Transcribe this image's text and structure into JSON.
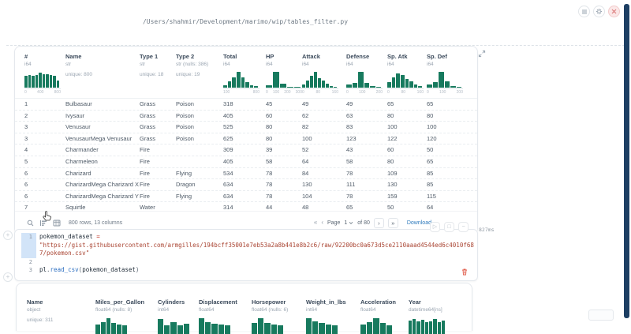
{
  "header": {
    "file_path": "/Users/shahmir/Development/marimo/wip/tables_filter.py"
  },
  "icons": {
    "page_first": "«",
    "page_prev": "‹",
    "page_next": "›",
    "page_last": "»",
    "run": "▷",
    "interrupt": "□",
    "collapse": "−",
    "add_cell": "+"
  },
  "colors": {
    "accent_green": "#177a5e",
    "link_blue": "#2f7bbd",
    "danger_red": "#e2604f",
    "scrollbar_navy": "#1d3f63"
  },
  "main_table": {
    "columns": [
      {
        "name": "#",
        "dtype": "i64",
        "hist": {
          "bins": [
            7.5,
            8,
            7.5,
            8,
            9.5,
            8.5,
            8.5,
            8,
            7.5,
            4.5
          ],
          "ticks": [
            "0",
            "400",
            "800"
          ]
        }
      },
      {
        "name": "Name",
        "dtype": "str",
        "meta": "unique: 800"
      },
      {
        "name": "Type 1",
        "dtype": "str",
        "meta": "unique: 18"
      },
      {
        "name": "Type 2",
        "dtype": "str (nulls: 386)",
        "meta": "unique: 19"
      },
      {
        "name": "Total",
        "dtype": "i64",
        "hist": {
          "bins": [
            1.5,
            4,
            6.5,
            10,
            6.5,
            3.5,
            1.5,
            0.8
          ],
          "ticks": [
            "100",
            "800"
          ]
        }
      },
      {
        "name": "HP",
        "dtype": "i64",
        "hist": {
          "bins": [
            1.5,
            10,
            2.5,
            0.7,
            0.3
          ],
          "ticks": [
            "0",
            "100",
            "200",
            "300"
          ]
        }
      },
      {
        "name": "Attack",
        "dtype": "i64",
        "hist": {
          "bins": [
            2,
            4.5,
            7.5,
            10,
            6,
            4.5,
            2.5,
            1.2,
            0.5
          ],
          "ticks": [
            "0",
            "80",
            "160"
          ]
        }
      },
      {
        "name": "Defense",
        "dtype": "i64",
        "hist": {
          "bins": [
            2,
            3,
            10,
            3,
            1,
            0.4
          ],
          "ticks": [
            "0",
            "100",
            "200"
          ]
        }
      },
      {
        "name": "Sp. Atk",
        "dtype": "i64",
        "hist": {
          "bins": [
            3.5,
            6.5,
            9,
            8,
            5.5,
            4,
            2,
            1
          ],
          "ticks": [
            "0",
            "80",
            "160"
          ]
        }
      },
      {
        "name": "Sp. Def",
        "dtype": "i64",
        "hist": {
          "bins": [
            2,
            3.5,
            10,
            4,
            1.2,
            0.5
          ],
          "ticks": [
            "0",
            "100",
            "200"
          ]
        }
      }
    ],
    "rows": [
      [
        "1",
        "Bulbasaur",
        "Grass",
        "Poison",
        "318",
        "45",
        "49",
        "49",
        "65",
        "65"
      ],
      [
        "2",
        "Ivysaur",
        "Grass",
        "Poison",
        "405",
        "60",
        "62",
        "63",
        "80",
        "80"
      ],
      [
        "3",
        "Venusaur",
        "Grass",
        "Poison",
        "525",
        "80",
        "82",
        "83",
        "100",
        "100"
      ],
      [
        "3",
        "VenusaurMega Venusaur",
        "Grass",
        "Poison",
        "625",
        "80",
        "100",
        "123",
        "122",
        "120"
      ],
      [
        "4",
        "Charmander",
        "Fire",
        "",
        "309",
        "39",
        "52",
        "43",
        "60",
        "50"
      ],
      [
        "5",
        "Charmeleon",
        "Fire",
        "",
        "405",
        "58",
        "64",
        "58",
        "80",
        "65"
      ],
      [
        "6",
        "Charizard",
        "Fire",
        "Flying",
        "534",
        "78",
        "84",
        "78",
        "109",
        "85"
      ],
      [
        "6",
        "CharizardMega Charizard X",
        "Fire",
        "Dragon",
        "634",
        "78",
        "130",
        "111",
        "130",
        "85"
      ],
      [
        "6",
        "CharizardMega Charizard Y",
        "Fire",
        "Flying",
        "634",
        "78",
        "104",
        "78",
        "159",
        "115"
      ],
      [
        "7",
        "Squirtle",
        "Water",
        "",
        "314",
        "44",
        "48",
        "65",
        "50",
        "64"
      ]
    ],
    "footer": {
      "summary": "800 rows, 13 columns",
      "page_label": "Page",
      "page_value": "1",
      "page_total": "of 80",
      "download_label": "Download"
    }
  },
  "editor": {
    "runtime": "827ms",
    "lines": [
      {
        "num": "1",
        "hl": true,
        "tokens": [
          {
            "t": "pokemon_dataset ",
            "c": "tk-def"
          },
          {
            "t": "=",
            "c": "tk-op"
          }
        ]
      },
      {
        "num": "",
        "hl": true,
        "tokens": [
          {
            "t": "\"https://gist.githubusercontent.com/armgilles/194bcff35001e7eb53a2a8b441e8b2c6/raw/92200bc0a673d5ce2110aaad4544ed6c4010f68",
            "c": "tk-str"
          }
        ]
      },
      {
        "num": "",
        "hl": true,
        "tokens": [
          {
            "t": "7/pokemon.csv\"",
            "c": "tk-str"
          }
        ]
      },
      {
        "num": "2",
        "hl": false,
        "tokens": []
      },
      {
        "num": "3",
        "hl": false,
        "tokens": [
          {
            "t": "pl",
            "c": "tk-def"
          },
          {
            "t": ".",
            "c": "tk-p"
          },
          {
            "t": "read_csv",
            "c": "tk-fn"
          },
          {
            "t": "(",
            "c": "tk-p"
          },
          {
            "t": "pokemon_dataset",
            "c": "tk-def"
          },
          {
            "t": ")",
            "c": "tk-p"
          }
        ]
      }
    ]
  },
  "bottom_table": {
    "columns": [
      {
        "name": "Name",
        "dtype": "object",
        "meta": "unique: 311"
      },
      {
        "name": "Miles_per_Gallon",
        "dtype": "float64 (nulls: 8)",
        "hist": [
          1,
          4,
          9,
          3,
          1,
          0
        ]
      },
      {
        "name": "Cylinders",
        "dtype": "int64",
        "hist": [
          8,
          0,
          4,
          0,
          2
        ]
      },
      {
        "name": "Displacement",
        "dtype": "float64",
        "hist": [
          9,
          4,
          2,
          1,
          0
        ]
      },
      {
        "name": "Horsepower",
        "dtype": "float64 (nulls: 6)",
        "hist": [
          3,
          9,
          3,
          1,
          0
        ]
      },
      {
        "name": "Weight_in_lbs",
        "dtype": "int64",
        "hist": [
          9,
          5,
          3,
          1,
          0
        ]
      },
      {
        "name": "Acceleration",
        "dtype": "float64",
        "hist": [
          1,
          4,
          9,
          3,
          0
        ]
      },
      {
        "name": "Year",
        "dtype": "datetime64[ns]",
        "hist": [
          6,
          8,
          5,
          7,
          4,
          5,
          8,
          4,
          6
        ],
        "wide": true
      }
    ]
  }
}
